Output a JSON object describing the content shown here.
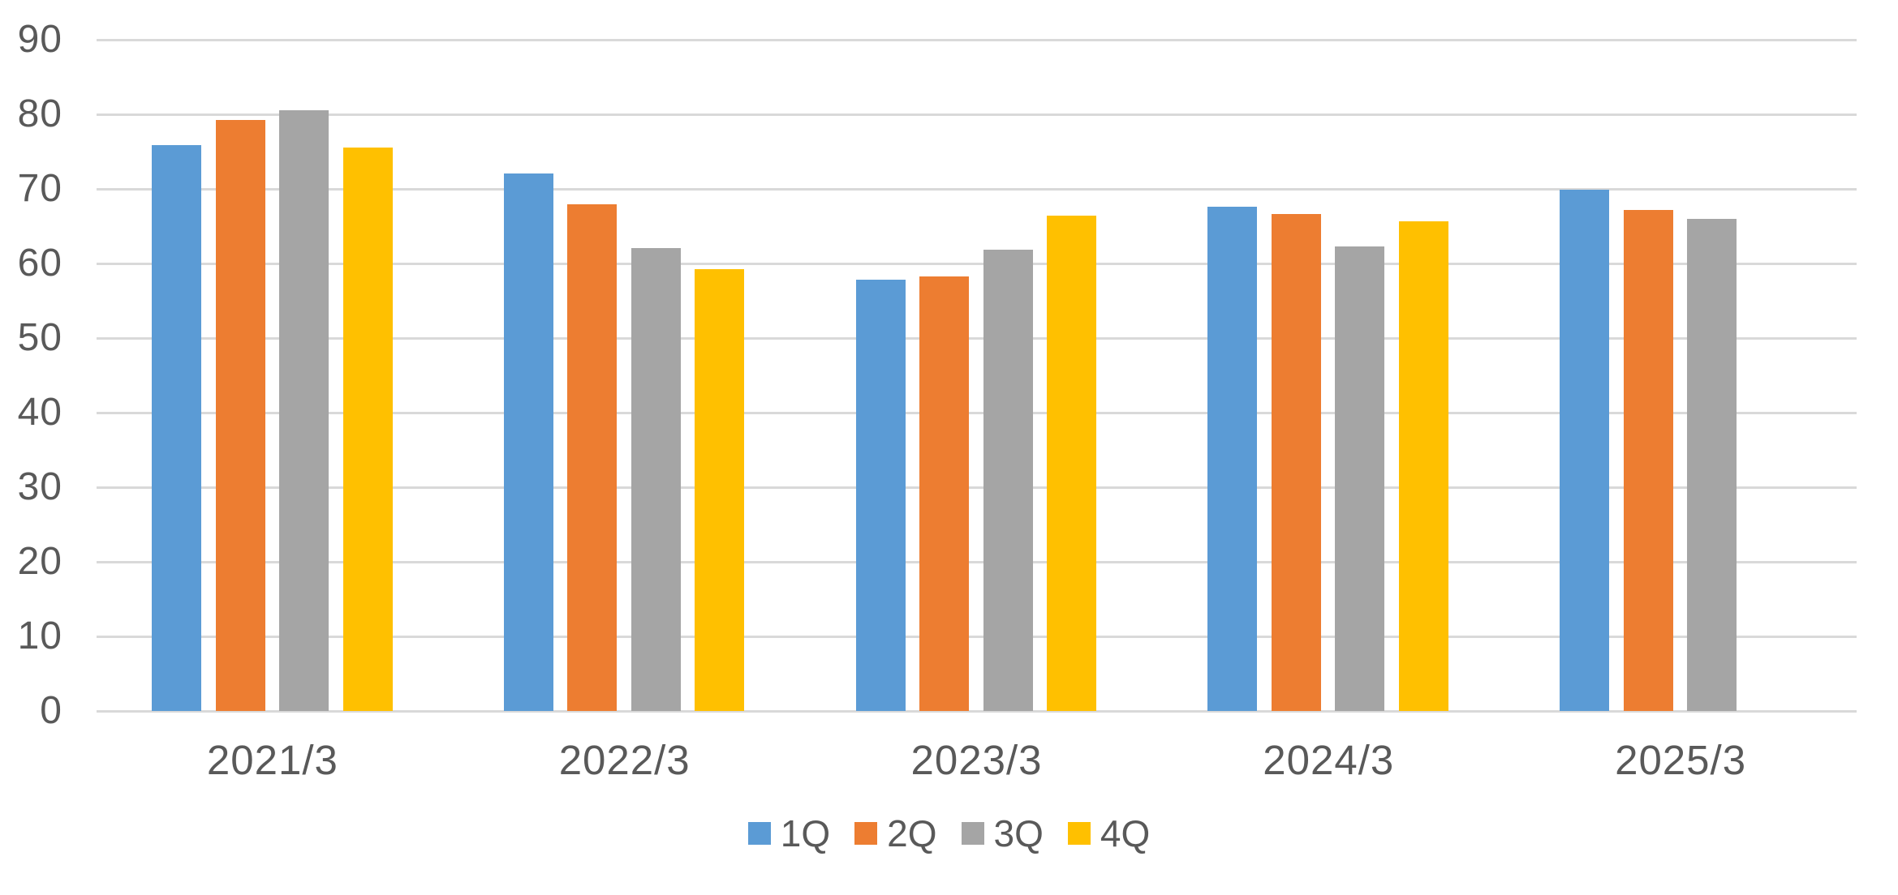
{
  "chart_data": {
    "type": "bar",
    "title": "",
    "xlabel": "",
    "ylabel": "",
    "categories": [
      "2021/3",
      "2022/3",
      "2023/3",
      "2024/3",
      "2025/3"
    ],
    "series": [
      {
        "name": "1Q",
        "color": "#5B9BD5",
        "values": [
          75.9,
          72.1,
          57.8,
          67.6,
          69.9
        ]
      },
      {
        "name": "2Q",
        "color": "#ED7D31",
        "values": [
          79.2,
          67.9,
          58.3,
          66.6,
          67.2
        ]
      },
      {
        "name": "3Q",
        "color": "#A5A5A5",
        "values": [
          80.5,
          62.1,
          61.8,
          62.3,
          66.0
        ]
      },
      {
        "name": "4Q",
        "color": "#FFC000",
        "values": [
          75.5,
          59.2,
          66.4,
          65.7,
          null
        ]
      }
    ],
    "ylim": [
      0,
      90
    ],
    "ytick_step": 10,
    "yticks": [
      "90",
      "80",
      "70",
      "60",
      "50",
      "40",
      "30",
      "20",
      "10",
      "0"
    ],
    "grid": true,
    "legend_position": "bottom",
    "legend_labels": [
      "1Q",
      "2Q",
      "3Q",
      "4Q"
    ]
  },
  "colors": {
    "background": "#FFFFFF",
    "gridline": "#D9D9D9",
    "axis_text": "#595959"
  }
}
